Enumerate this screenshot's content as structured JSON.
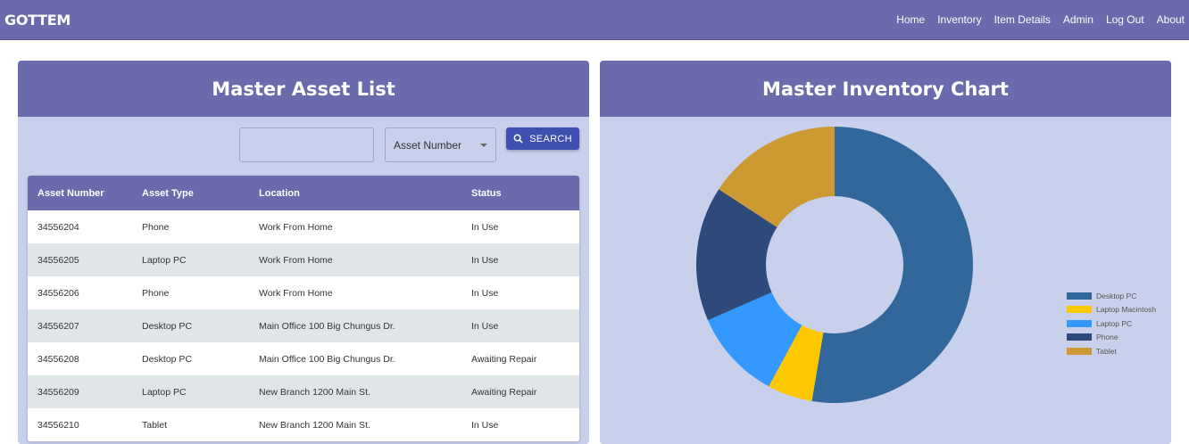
{
  "navbar": {
    "brand": "GOTTEM",
    "links": [
      "Home",
      "Inventory",
      "Item Details",
      "Admin",
      "Log Out",
      "About"
    ]
  },
  "asset_list": {
    "title": "Master Asset List",
    "search": {
      "input_value": "",
      "select_value": "Asset Number",
      "button_label": "SEARCH",
      "button_icon": "search-icon"
    },
    "columns": [
      "Asset Number",
      "Asset Type",
      "Location",
      "Status"
    ],
    "rows": [
      [
        "34556204",
        "Phone",
        "Work From Home",
        "In Use"
      ],
      [
        "34556205",
        "Laptop PC",
        "Work From Home",
        "In Use"
      ],
      [
        "34556206",
        "Phone",
        "Work From Home",
        "In Use"
      ],
      [
        "34556207",
        "Desktop PC",
        "Main Office 100 Big Chungus Dr.",
        "In Use"
      ],
      [
        "34556208",
        "Desktop PC",
        "Main Office 100 Big Chungus Dr.",
        "Awaiting Repair"
      ],
      [
        "34556209",
        "Laptop PC",
        "New Branch 1200 Main St.",
        "Awaiting Repair"
      ],
      [
        "34556210",
        "Tablet",
        "New Branch 1200 Main St.",
        "In Use"
      ]
    ]
  },
  "inventory_chart": {
    "title": "Master Inventory Chart"
  },
  "colors": {
    "navbar": "#6a6aad",
    "panel_bg": "#c8d0ec",
    "button": "#3f4fb0"
  },
  "chart_data": {
    "type": "pie",
    "subtype": "donut",
    "title": "Master Inventory Chart",
    "categories": [
      "Desktop PC",
      "Laptop Macintosh",
      "Laptop PC",
      "Phone",
      "Tablet"
    ],
    "values": [
      10,
      1,
      2,
      3,
      3
    ],
    "percentages": [
      52.6,
      5.3,
      10.5,
      15.8,
      15.8
    ],
    "colors": [
      "#31679a",
      "#fdc800",
      "#3399ff",
      "#2e4a7a",
      "#cc9933"
    ],
    "legend_position": "right"
  }
}
